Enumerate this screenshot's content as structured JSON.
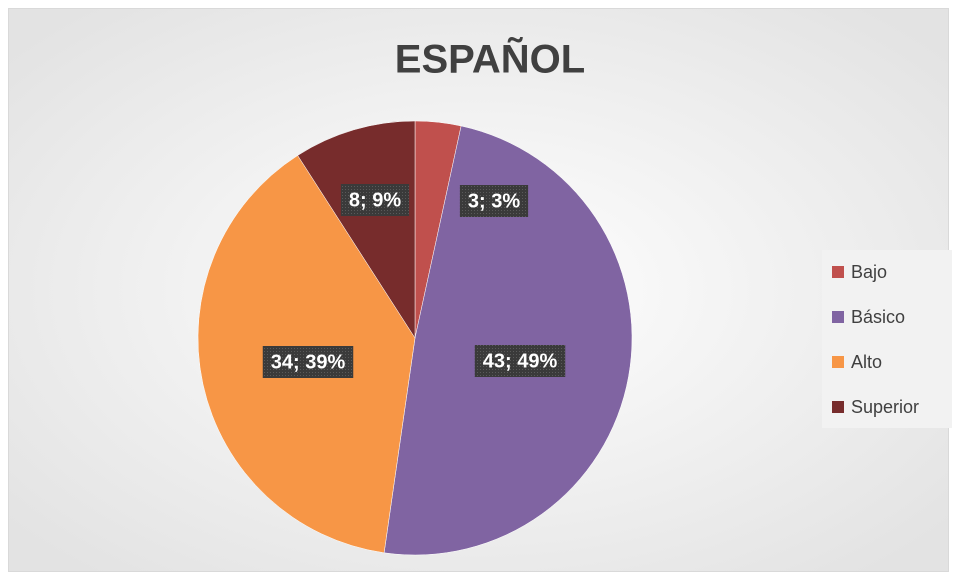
{
  "chart_data": {
    "type": "pie",
    "title": "ESPAÑOL",
    "categories": [
      "Bajo",
      "Básico",
      "Alto",
      "Superior"
    ],
    "values": [
      3,
      43,
      34,
      8
    ],
    "value_labels": [
      "3; 3%",
      "43; 49%",
      "34; 39%",
      "8; 9%"
    ],
    "colors": [
      "#c0504d",
      "#8064a2",
      "#f79646",
      "#772c2c"
    ],
    "legend": "right"
  }
}
